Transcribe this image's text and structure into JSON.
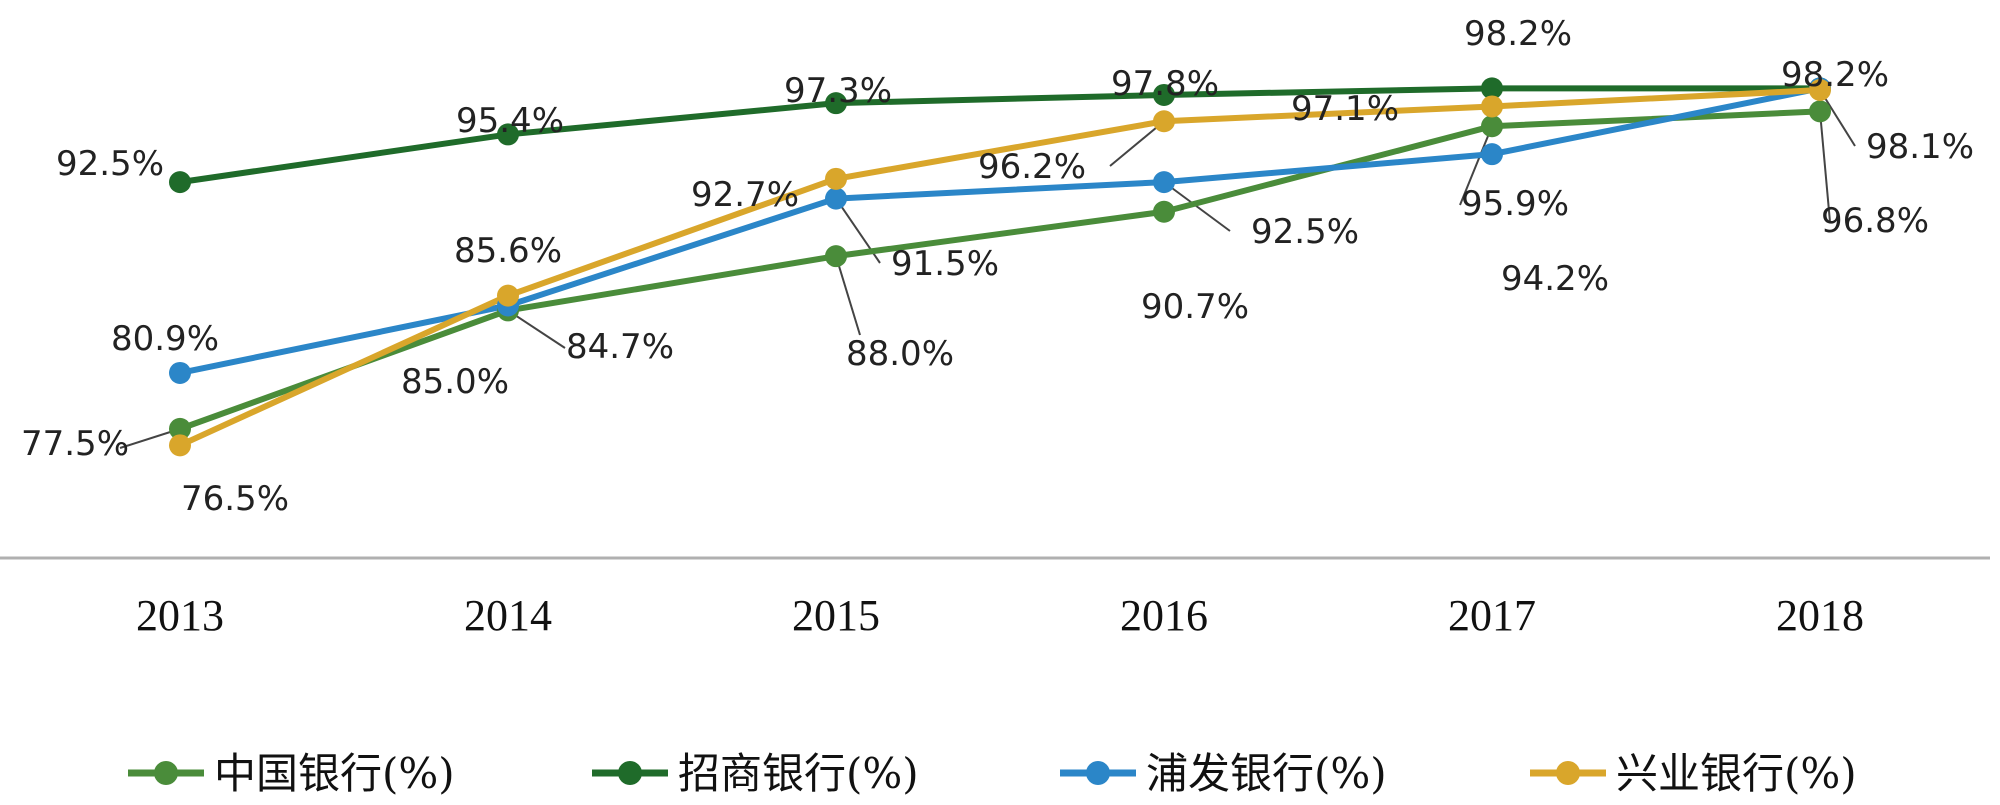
{
  "chart_data": {
    "type": "line",
    "categories": [
      "2013",
      "2014",
      "2015",
      "2016",
      "2017",
      "2018"
    ],
    "ylim": [
      70,
      100
    ],
    "grid": false,
    "legend_position": "bottom",
    "series": [
      {
        "name": "中国银行(%)",
        "color": "#4a8c3a",
        "values": [
          77.5,
          84.7,
          88.0,
          90.7,
          95.9,
          96.8
        ],
        "labels": [
          "77.5%",
          "84.7%",
          "88.0%",
          "90.7%",
          "95.9%",
          "96.8%"
        ]
      },
      {
        "name": "招商银行(%)",
        "color": "#1f6b2a",
        "values": [
          92.5,
          95.4,
          97.3,
          97.8,
          98.2,
          98.2
        ],
        "labels": [
          "92.5%",
          "95.4%",
          "97.3%",
          "97.8%",
          "98.2%",
          "98.2%"
        ]
      },
      {
        "name": "浦发银行(%)",
        "color": "#2b86c8",
        "values": [
          80.9,
          85.0,
          91.5,
          92.5,
          94.2,
          98.2
        ],
        "labels": [
          "80.9%",
          "85.0%",
          "91.5%",
          "92.5%",
          "94.2%",
          ""
        ]
      },
      {
        "name": "兴业银行(%)",
        "color": "#d9a62b",
        "values": [
          76.5,
          85.6,
          92.7,
          96.2,
          97.1,
          98.1
        ],
        "labels": [
          "76.5%",
          "85.6%",
          "92.7%",
          "96.2%",
          "97.1%",
          "98.1%"
        ]
      }
    ]
  }
}
